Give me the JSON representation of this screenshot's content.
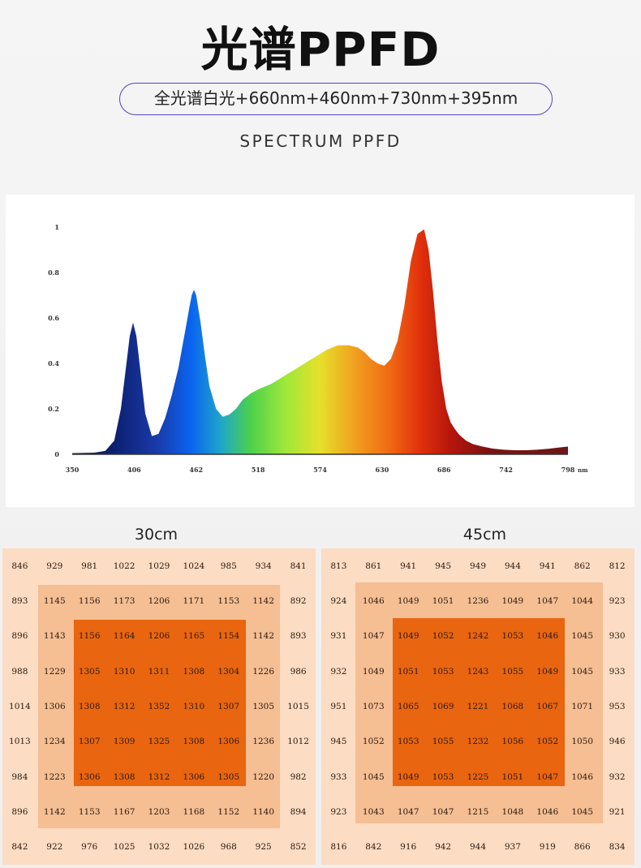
{
  "header": {
    "title": "光谱PPFD",
    "spectrum_label": "全光谱白光+660nm+460nm+730nm+395nm",
    "subtitle": "SPECTRUM PPFD"
  },
  "colors": {
    "pill_border": "#5b3fc4",
    "grid_outer": "#fcdcc2",
    "grid_middle": "#f5be93",
    "grid_core": "#e9650f"
  },
  "chart_data": [
    {
      "type": "area",
      "title": "",
      "xlabel": "",
      "ylabel": "",
      "x_unit": "nm",
      "xlim": [
        350,
        798
      ],
      "ylim": [
        0,
        1
      ],
      "x_ticks": [
        350,
        406,
        462,
        518,
        574,
        630,
        686,
        742,
        798
      ],
      "x_tick_labels": [
        "350",
        "406",
        "462",
        "518",
        "574",
        "630",
        "686",
        "742",
        "798"
      ],
      "y_ticks": [
        0,
        0.2,
        0.4,
        0.6,
        0.8,
        1
      ],
      "y_tick_labels": [
        "0",
        "0.2",
        "0.4",
        "0.6",
        "0.8",
        "1"
      ],
      "grid": false,
      "fill": "wavelength-colored spectrum gradient",
      "x": [
        350,
        370,
        380,
        388,
        394,
        398,
        402,
        405,
        408,
        412,
        416,
        422,
        428,
        434,
        440,
        446,
        452,
        456,
        458,
        460,
        462,
        466,
        470,
        474,
        480,
        486,
        492,
        498,
        504,
        512,
        520,
        530,
        540,
        550,
        560,
        570,
        580,
        590,
        600,
        608,
        614,
        620,
        626,
        632,
        638,
        644,
        650,
        656,
        662,
        668,
        672,
        676,
        680,
        684,
        688,
        692,
        696,
        700,
        706,
        712,
        720,
        730,
        740,
        750,
        760,
        770,
        780,
        790,
        798
      ],
      "y": [
        0.005,
        0.007,
        0.015,
        0.06,
        0.2,
        0.36,
        0.52,
        0.58,
        0.52,
        0.35,
        0.18,
        0.08,
        0.09,
        0.16,
        0.26,
        0.38,
        0.54,
        0.65,
        0.7,
        0.725,
        0.7,
        0.58,
        0.43,
        0.3,
        0.2,
        0.165,
        0.175,
        0.2,
        0.24,
        0.27,
        0.29,
        0.31,
        0.34,
        0.37,
        0.4,
        0.43,
        0.46,
        0.48,
        0.48,
        0.47,
        0.45,
        0.42,
        0.4,
        0.39,
        0.42,
        0.5,
        0.65,
        0.85,
        0.97,
        0.99,
        0.9,
        0.72,
        0.5,
        0.32,
        0.2,
        0.14,
        0.11,
        0.085,
        0.06,
        0.045,
        0.035,
        0.025,
        0.02,
        0.018,
        0.018,
        0.02,
        0.024,
        0.03,
        0.034
      ]
    },
    {
      "type": "heatmap",
      "title": "30cm",
      "unit": "PPFD",
      "rows": [
        [
          846,
          929,
          981,
          1022,
          1029,
          1024,
          985,
          934,
          841
        ],
        [
          893,
          1145,
          1156,
          1173,
          1206,
          1171,
          1153,
          1142,
          892
        ],
        [
          896,
          1143,
          1156,
          1164,
          1206,
          1165,
          1154,
          1142,
          893
        ],
        [
          988,
          1229,
          1305,
          1310,
          1311,
          1308,
          1304,
          1226,
          986
        ],
        [
          1014,
          1306,
          1308,
          1312,
          1352,
          1310,
          1307,
          1305,
          1015
        ],
        [
          1013,
          1234,
          1307,
          1309,
          1325,
          1308,
          1306,
          1236,
          1012
        ],
        [
          984,
          1223,
          1306,
          1308,
          1312,
          1306,
          1305,
          1220,
          982
        ],
        [
          896,
          1142,
          1153,
          1167,
          1203,
          1168,
          1152,
          1140,
          894
        ],
        [
          842,
          922,
          976,
          1025,
          1032,
          1026,
          968,
          925,
          852
        ]
      ]
    },
    {
      "type": "heatmap",
      "title": "45cm",
      "unit": "PPFD",
      "rows": [
        [
          813,
          861,
          941,
          945,
          949,
          944,
          941,
          862,
          812
        ],
        [
          924,
          1046,
          1049,
          1051,
          1236,
          1049,
          1047,
          1044,
          923
        ],
        [
          931,
          1047,
          1049,
          1052,
          1242,
          1053,
          1046,
          1045,
          930
        ],
        [
          932,
          1049,
          1051,
          1053,
          1243,
          1055,
          1049,
          1045,
          933
        ],
        [
          951,
          1073,
          1065,
          1069,
          1221,
          1068,
          1067,
          1071,
          953
        ],
        [
          945,
          1052,
          1053,
          1055,
          1232,
          1056,
          1052,
          1050,
          946
        ],
        [
          933,
          1045,
          1049,
          1053,
          1225,
          1051,
          1047,
          1046,
          932
        ],
        [
          923,
          1043,
          1047,
          1047,
          1215,
          1048,
          1046,
          1045,
          921
        ],
        [
          816,
          842,
          916,
          942,
          944,
          937,
          919,
          866,
          834
        ]
      ]
    }
  ]
}
